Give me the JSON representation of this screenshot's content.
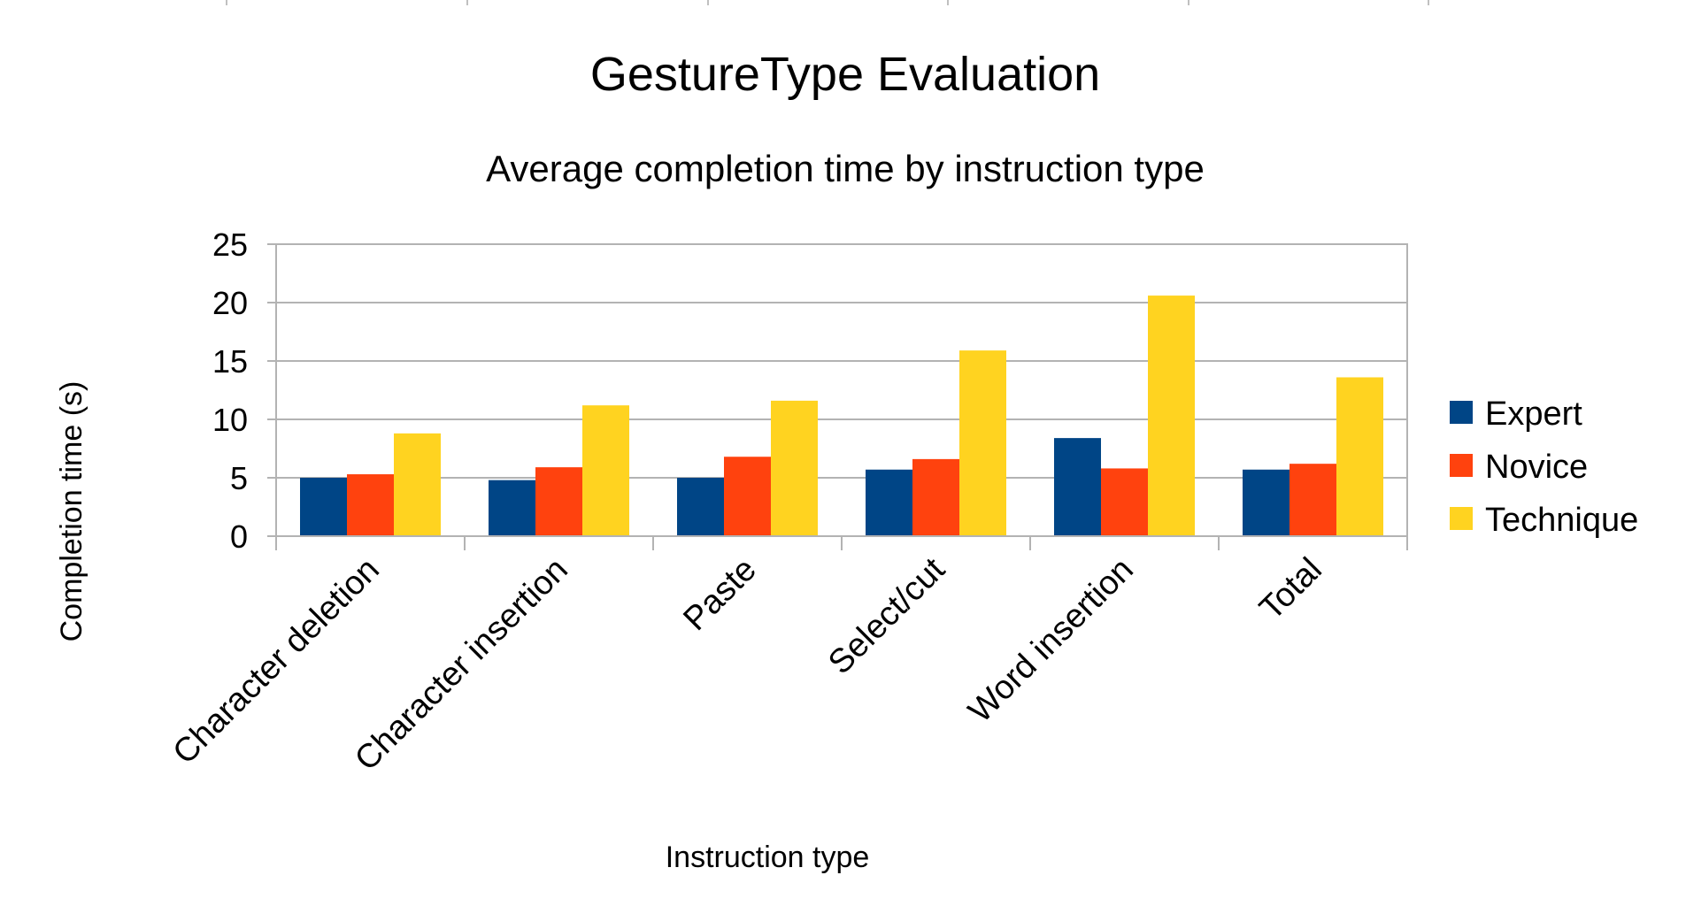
{
  "chart_data": {
    "type": "bar",
    "title": "GestureType Evaluation",
    "subtitle": "Average completion time by instruction type",
    "xlabel": "Instruction type",
    "ylabel": "Completion time (s)",
    "ylim": [
      0,
      25
    ],
    "yticks": [
      0,
      5,
      10,
      15,
      20,
      25
    ],
    "grid": true,
    "legend_position": "right",
    "categories": [
      "Character deletion",
      "Character insertion",
      "Paste",
      "Select/cut",
      "Word insertion",
      "Total"
    ],
    "series": [
      {
        "name": "Expert",
        "color": "#004586",
        "values": [
          5.0,
          4.8,
          5.0,
          5.7,
          8.4,
          5.7
        ]
      },
      {
        "name": "Novice",
        "color": "#ff420e",
        "values": [
          5.3,
          5.9,
          6.8,
          6.6,
          5.8,
          6.2
        ]
      },
      {
        "name": "Technique",
        "color": "#ffd320",
        "values": [
          8.8,
          11.2,
          11.6,
          15.9,
          20.6,
          13.6
        ]
      }
    ]
  }
}
